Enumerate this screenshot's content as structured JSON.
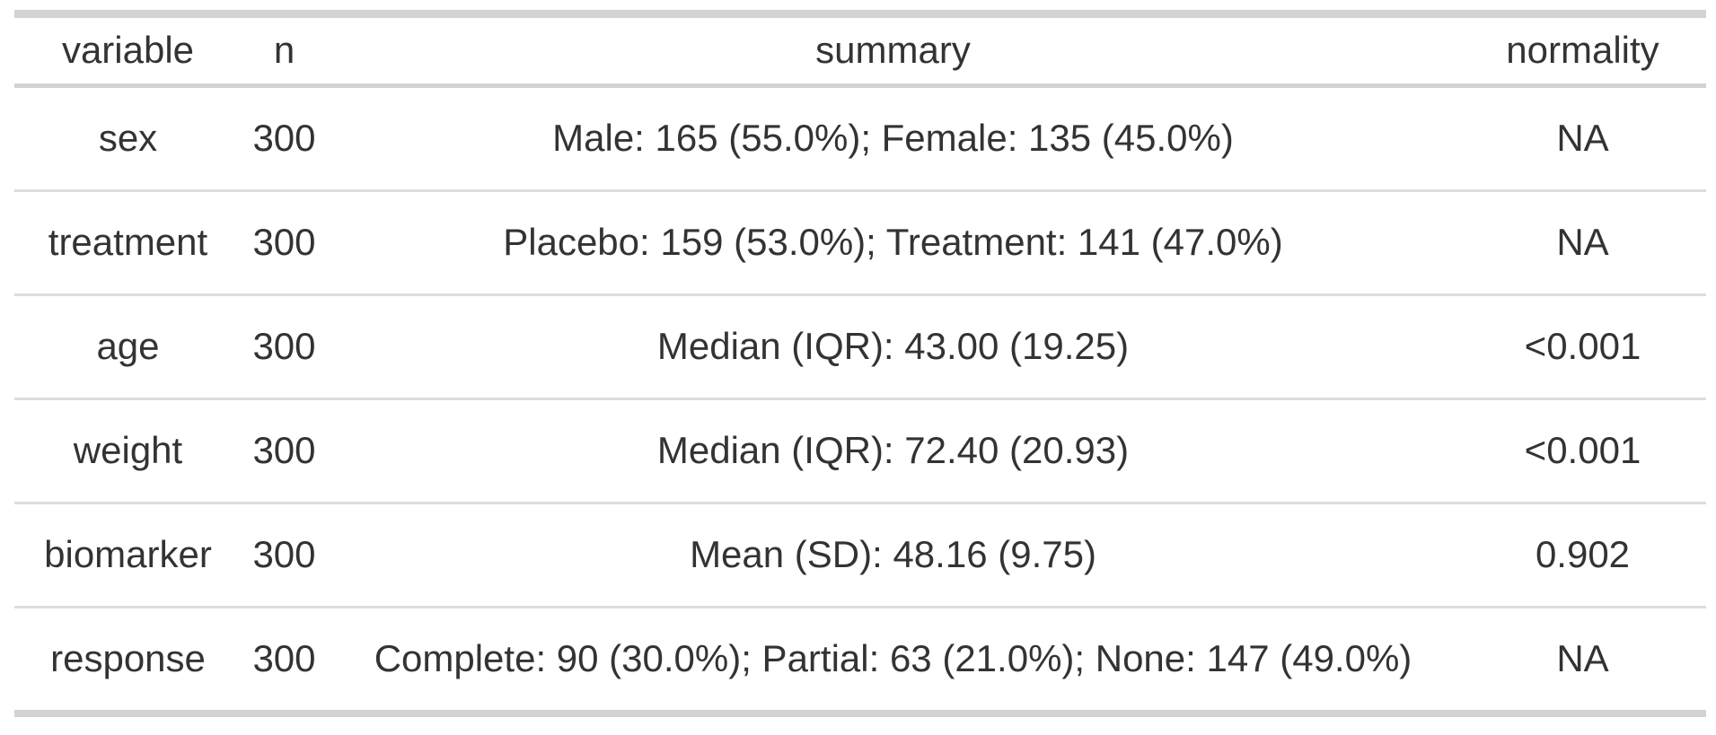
{
  "chart_data": {
    "type": "table",
    "title": "",
    "columns": [
      "variable",
      "n",
      "summary",
      "normality"
    ],
    "rows": [
      [
        "sex",
        "300",
        "Male: 165 (55.0%); Female: 135 (45.0%)",
        "NA"
      ],
      [
        "treatment",
        "300",
        "Placebo: 159 (53.0%); Treatment: 141 (47.0%)",
        "NA"
      ],
      [
        "age",
        "300",
        "Median (IQR): 43.00 (19.25)",
        "<0.001"
      ],
      [
        "weight",
        "300",
        "Median (IQR): 72.40 (20.93)",
        "<0.001"
      ],
      [
        "biomarker",
        "300",
        "Mean (SD): 48.16 (9.75)",
        "0.902"
      ],
      [
        "response",
        "300",
        "Complete: 90 (30.0%); Partial: 63 (21.0%); None: 147 (49.0%)",
        "NA"
      ]
    ],
    "layout": {
      "grid": "horizontal-rules-only",
      "header_position": "top",
      "cell_alignment": "center"
    },
    "colors": {
      "text": "#333333",
      "thick_rule": "#D3D3D3",
      "thin_rule": "#DDDDDD",
      "background": "#FFFFFF"
    }
  }
}
